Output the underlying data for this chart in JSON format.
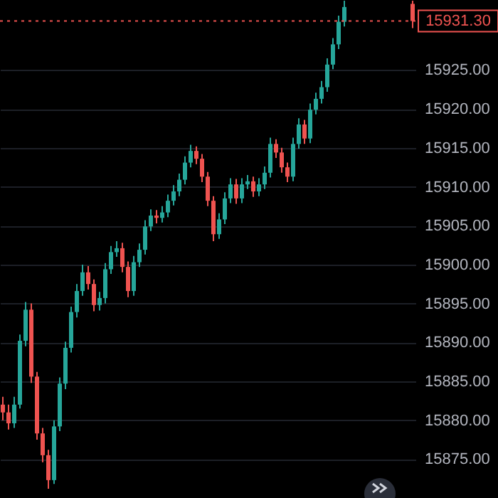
{
  "chart_data": {
    "type": "candlestick",
    "categories": [
      null,
      null,
      null,
      null,
      null,
      null,
      null,
      null,
      null,
      null,
      null,
      null,
      null,
      null,
      null,
      null,
      null,
      null,
      null,
      null,
      null,
      null,
      null,
      null,
      null,
      null,
      null,
      null,
      null,
      null,
      null,
      null,
      null,
      null,
      null,
      null,
      null,
      null,
      null,
      null,
      null,
      null,
      null,
      null,
      null,
      null,
      null,
      null,
      null,
      null,
      null,
      null,
      null,
      null,
      null,
      null,
      null,
      null,
      null,
      null,
      null,
      null,
      null,
      null,
      null,
      null,
      null,
      null,
      null,
      null,
      null,
      null,
      null
    ],
    "ohlc": [
      [
        15882.0,
        15883.0,
        15880.0,
        15881.0
      ],
      [
        15881.0,
        15882.0,
        15878.8,
        15879.6
      ],
      [
        15879.6,
        15883.0,
        15879.0,
        15882.0
      ],
      [
        15882.0,
        15891.0,
        15881.5,
        15890.2
      ],
      [
        15890.2,
        15895.2,
        15889.5,
        15894.2
      ],
      [
        15894.2,
        15895.0,
        15884.8,
        15885.6
      ],
      [
        15885.6,
        15886.2,
        15877.5,
        15878.3
      ],
      [
        15878.3,
        15879.0,
        15874.6,
        15875.5
      ],
      [
        15875.5,
        15876.2,
        15871.2,
        15872.3
      ],
      [
        15872.3,
        15880.0,
        15871.8,
        15879.2
      ],
      [
        15879.2,
        15885.5,
        15878.6,
        15884.7
      ],
      [
        15884.7,
        15890.1,
        15884.0,
        15889.3
      ],
      [
        15889.3,
        15894.6,
        15888.7,
        15893.9
      ],
      [
        15893.9,
        15897.5,
        15893.2,
        15896.6
      ],
      [
        15896.6,
        15900.0,
        15896.0,
        15899.0
      ],
      [
        15899.0,
        15899.8,
        15896.8,
        15897.5
      ],
      [
        15897.5,
        15898.1,
        15894.0,
        15894.8
      ],
      [
        15894.8,
        15896.5,
        15894.1,
        15895.7
      ],
      [
        15895.7,
        15900.2,
        15895.0,
        15899.4
      ],
      [
        15899.4,
        15902.4,
        15898.8,
        15901.6
      ],
      [
        15901.6,
        15903.0,
        15901.0,
        15902.1
      ],
      [
        15902.1,
        15902.8,
        15899.0,
        15899.7
      ],
      [
        15899.7,
        15900.4,
        15895.8,
        15896.6
      ],
      [
        15896.6,
        15901.1,
        15896.0,
        15900.3
      ],
      [
        15900.3,
        15902.7,
        15899.7,
        15901.9
      ],
      [
        15901.9,
        15905.7,
        15901.3,
        15904.9
      ],
      [
        15904.9,
        15907.1,
        15904.3,
        15906.3
      ],
      [
        15906.3,
        15907.0,
        15905.3,
        15906.0
      ],
      [
        15906.0,
        15907.5,
        15905.4,
        15906.7
      ],
      [
        15906.7,
        15909.0,
        15906.1,
        15908.2
      ],
      [
        15908.2,
        15910.2,
        15907.6,
        15909.4
      ],
      [
        15909.4,
        15911.7,
        15908.8,
        15910.9
      ],
      [
        15910.9,
        15913.9,
        15910.3,
        15913.1
      ],
      [
        15913.1,
        15915.4,
        15912.5,
        15914.6
      ],
      [
        15914.6,
        15915.2,
        15912.9,
        15913.6
      ],
      [
        15913.6,
        15914.2,
        15910.6,
        15911.3
      ],
      [
        15911.3,
        15911.9,
        15907.5,
        15908.2
      ],
      [
        15908.2,
        15908.8,
        15903.0,
        15903.9
      ],
      [
        15903.9,
        15906.6,
        15903.3,
        15905.8
      ],
      [
        15905.8,
        15909.3,
        15905.2,
        15908.5
      ],
      [
        15908.5,
        15911.1,
        15907.9,
        15910.3
      ],
      [
        15910.3,
        15911.0,
        15907.8,
        15908.5
      ],
      [
        15908.5,
        15911.1,
        15907.9,
        15910.3
      ],
      [
        15910.3,
        15911.5,
        15909.7,
        15910.7
      ],
      [
        15910.7,
        15911.3,
        15908.7,
        15909.4
      ],
      [
        15909.4,
        15911.1,
        15908.8,
        15910.3
      ],
      [
        15910.3,
        15912.6,
        15909.7,
        15911.8
      ],
      [
        15911.8,
        15916.3,
        15911.2,
        15915.5
      ],
      [
        15915.5,
        15916.1,
        15913.7,
        15914.4
      ],
      [
        15914.4,
        15915.0,
        15911.8,
        15912.5
      ],
      [
        15912.5,
        15913.1,
        15910.6,
        15911.3
      ],
      [
        15911.3,
        15916.3,
        15910.7,
        15915.5
      ],
      [
        15915.5,
        15918.8,
        15914.9,
        15918.0
      ],
      [
        15918.0,
        15918.6,
        15915.5,
        15916.2
      ],
      [
        15916.2,
        15920.7,
        15915.6,
        15919.9
      ],
      [
        15919.9,
        15922.1,
        15919.3,
        15921.3
      ],
      [
        15921.3,
        15923.6,
        15920.7,
        15922.8
      ],
      [
        15922.8,
        15926.5,
        15922.2,
        15925.7
      ],
      [
        15925.7,
        15929.1,
        15925.1,
        15928.3
      ],
      [
        15928.3,
        15932.0,
        15927.7,
        15931.2
      ],
      [
        15931.2,
        15933.9,
        15930.6,
        15933.1
      ],
      null,
      null,
      null,
      null,
      null,
      null,
      null,
      null,
      null,
      null,
      null,
      [
        15933.5,
        15933.9,
        15930.4,
        15931.3
      ]
    ],
    "colors": [
      "#ef5350",
      "#ef5350",
      "#26a69a",
      "#26a69a",
      "#26a69a",
      "#ef5350",
      "#ef5350",
      "#ef5350",
      "#ef5350",
      "#26a69a",
      "#26a69a",
      "#26a69a",
      "#26a69a",
      "#26a69a",
      "#26a69a",
      "#ef5350",
      "#ef5350",
      "#26a69a",
      "#26a69a",
      "#26a69a",
      "#26a69a",
      "#ef5350",
      "#ef5350",
      "#26a69a",
      "#26a69a",
      "#26a69a",
      "#26a69a",
      "#ef5350",
      "#26a69a",
      "#26a69a",
      "#26a69a",
      "#26a69a",
      "#26a69a",
      "#26a69a",
      "#ef5350",
      "#ef5350",
      "#ef5350",
      "#ef5350",
      "#26a69a",
      "#26a69a",
      "#26a69a",
      "#ef5350",
      "#26a69a",
      "#26a69a",
      "#ef5350",
      "#26a69a",
      "#26a69a",
      "#26a69a",
      "#ef5350",
      "#ef5350",
      "#ef5350",
      "#26a69a",
      "#26a69a",
      "#ef5350",
      "#26a69a",
      "#26a69a",
      "#26a69a",
      "#26a69a",
      "#26a69a",
      "#26a69a",
      "#26a69a",
      null,
      null,
      null,
      null,
      null,
      null,
      null,
      null,
      null,
      null,
      null,
      "#ef5350"
    ],
    "ylim": [
      15870,
      15934
    ],
    "yticks": [
      {
        "value": 15875,
        "label": "15875.00"
      },
      {
        "value": 15880,
        "label": "15880.00"
      },
      {
        "value": 15885,
        "label": "15885.00"
      },
      {
        "value": 15890,
        "label": "15890.00"
      },
      {
        "value": 15895,
        "label": "15895.00"
      },
      {
        "value": 15900,
        "label": "15900.00"
      },
      {
        "value": 15905,
        "label": "15905.00"
      },
      {
        "value": 15910,
        "label": "15910.00"
      },
      {
        "value": 15915,
        "label": "15915.00"
      },
      {
        "value": 15920,
        "label": "15920.00"
      },
      {
        "value": 15925,
        "label": "15925.00"
      }
    ],
    "grid": "y",
    "tick_labels": "y",
    "ref_lines": [
      {
        "axis": "y",
        "value": 15931.3,
        "label": "15931.30",
        "color": "#ef5350",
        "line_style": "dotted"
      }
    ]
  }
}
